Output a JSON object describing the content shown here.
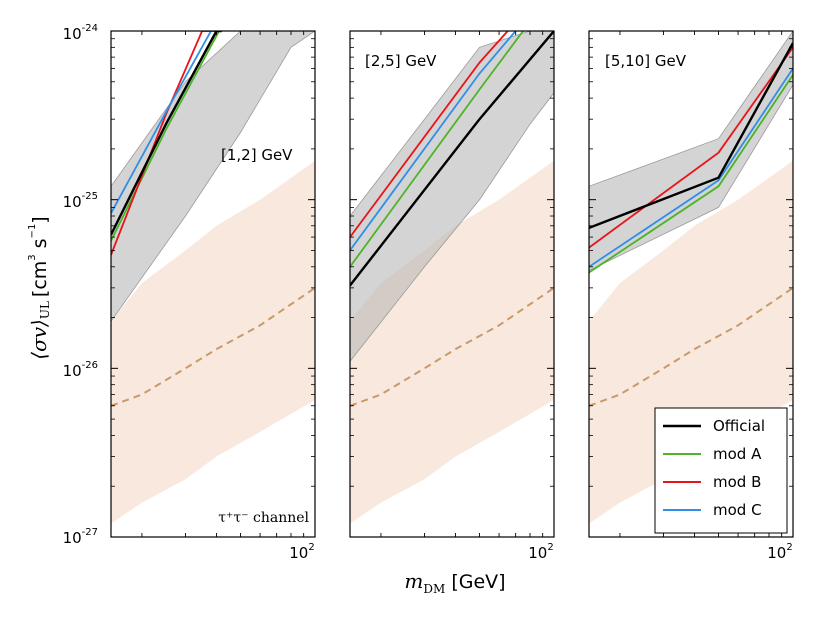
{
  "chart_data": {
    "type": "line",
    "ylabel": "⟨σv⟩_UL [cm³ s⁻¹]",
    "ylabel_parts": {
      "main": "⟨σv⟩",
      "sub": "UL",
      "units_a": "[cm",
      "units_sup3": "3",
      "units_b": "s",
      "units_sup": "−1",
      "units_c": "]"
    },
    "xlabel_parts": {
      "main": "m",
      "sub": "DM",
      "units": "[GeV]"
    },
    "xlim": [
      15,
      100
    ],
    "ylim": [
      1e-27,
      1e-24
    ],
    "yscale": "log",
    "xscale": "log",
    "y_ticks": [
      {
        "base": "10",
        "exp": "-24",
        "value": 1e-24
      },
      {
        "base": "10",
        "exp": "-25",
        "value": 1e-25
      },
      {
        "base": "10",
        "exp": "-26",
        "value": 1e-26
      },
      {
        "base": "10",
        "exp": "-27",
        "value": 1e-27
      }
    ],
    "x_tick": {
      "base": "10",
      "exp": "2",
      "value": 100
    },
    "colors": {
      "official": "#000000",
      "modA": "#4db328",
      "modB": "#e8141c",
      "modC": "#2f8fe6",
      "official_band": "#b8b8b8",
      "expected_band": "#f6dccb",
      "expected_line": "#c89a6c"
    },
    "legend": {
      "entries": [
        {
          "key": "official",
          "label": "Official"
        },
        {
          "key": "modA",
          "label": "mod A"
        },
        {
          "key": "modB",
          "label": "mod B"
        },
        {
          "key": "modC",
          "label": "mod C"
        }
      ]
    },
    "channel_label": "τ⁺τ⁻ channel",
    "panels": [
      {
        "id": "1-2",
        "label": "[1,2] GeV",
        "expected_line": {
          "x": [
            15,
            20,
            30,
            40,
            60,
            100
          ],
          "y": [
            6e-27,
            7e-27,
            1e-26,
            1.3e-26,
            1.8e-26,
            3e-26
          ]
        },
        "expected_band": {
          "x": [
            15,
            20,
            30,
            40,
            60,
            100
          ],
          "lo": [
            1.2e-27,
            1.6e-27,
            2.2e-27,
            3e-27,
            4.2e-27,
            6.5e-27
          ],
          "hi": [
            1.9e-26,
            3.2e-26,
            5e-26,
            7e-26,
            1e-25,
            1.7e-25
          ]
        },
        "official_band": {
          "x": [
            15,
            30,
            50,
            80,
            100
          ],
          "lo": [
            1.9e-26,
            8e-26,
            2.5e-25,
            8e-25,
            1e-24
          ],
          "hi": [
            1.2e-25,
            5e-25,
            1e-24,
            1e-24,
            1e-24
          ]
        },
        "series": [
          {
            "key": "official",
            "x": [
              15,
              25,
              40,
              42
            ],
            "y": [
              6.2e-26,
              2.8e-25,
              1e-24,
              1e-24
            ]
          },
          {
            "key": "modA",
            "x": [
              15,
              25,
              41,
              42
            ],
            "y": [
              5.7e-26,
              2.6e-25,
              1e-24,
              1e-24
            ]
          },
          {
            "key": "modB",
            "x": [
              15,
              25,
              35,
              42
            ],
            "y": [
              4.7e-26,
              3.2e-25,
              1e-24,
              1e-24
            ]
          },
          {
            "key": "modC",
            "x": [
              15,
              25,
              38,
              42
            ],
            "y": [
              8.3e-26,
              3.3e-25,
              1e-24,
              1e-24
            ]
          }
        ]
      },
      {
        "id": "2-5",
        "label": "[2,5] GeV",
        "expected_line": {
          "x": [
            15,
            20,
            30,
            40,
            60,
            100
          ],
          "y": [
            6e-27,
            7e-27,
            1e-26,
            1.3e-26,
            1.8e-26,
            3e-26
          ]
        },
        "expected_band": {
          "x": [
            15,
            20,
            30,
            40,
            60,
            100
          ],
          "lo": [
            1.2e-27,
            1.6e-27,
            2.2e-27,
            3e-27,
            4.2e-27,
            6.5e-27
          ],
          "hi": [
            1.9e-26,
            3.2e-26,
            5e-26,
            7e-26,
            1e-25,
            1.7e-25
          ]
        },
        "official_band": {
          "x": [
            15,
            30,
            50,
            80,
            100
          ],
          "lo": [
            1.1e-26,
            4e-26,
            1e-25,
            2.8e-25,
            4.3e-25
          ],
          "hi": [
            8e-26,
            3e-25,
            8e-25,
            1e-24,
            1e-24
          ]
        },
        "series": [
          {
            "key": "official",
            "x": [
              15,
              50,
              100
            ],
            "y": [
              3.1e-26,
              3e-25,
              1e-24
            ]
          },
          {
            "key": "modA",
            "x": [
              15,
              50,
              75
            ],
            "y": [
              4e-26,
              4.5e-25,
              1e-24
            ]
          },
          {
            "key": "modB",
            "x": [
              15,
              50,
              65
            ],
            "y": [
              6e-26,
              6.5e-25,
              1e-24
            ]
          },
          {
            "key": "modC",
            "x": [
              15,
              50,
              70
            ],
            "y": [
              5e-26,
              5.6e-25,
              1e-24
            ]
          }
        ]
      },
      {
        "id": "5-10",
        "label": "[5,10] GeV",
        "expected_line": {
          "x": [
            15,
            20,
            30,
            40,
            60,
            100
          ],
          "y": [
            6e-27,
            7e-27,
            1e-26,
            1.3e-26,
            1.8e-26,
            3e-26
          ]
        },
        "expected_band": {
          "x": [
            15,
            20,
            30,
            40,
            60,
            100
          ],
          "lo": [
            1.2e-27,
            1.6e-27,
            2.2e-27,
            3e-27,
            4.2e-27,
            6.5e-27
          ],
          "hi": [
            1.9e-26,
            3.2e-26,
            5e-26,
            7e-26,
            1e-25,
            1.7e-25
          ]
        },
        "official_band": {
          "x": [
            15,
            50,
            100
          ],
          "lo": [
            3.8e-26,
            9e-26,
            4.8e-25
          ],
          "hi": [
            1.2e-25,
            2.3e-25,
            1e-24
          ]
        },
        "series": [
          {
            "key": "official",
            "x": [
              15,
              50,
              100
            ],
            "y": [
              6.8e-26,
              1.35e-25,
              8.5e-25
            ]
          },
          {
            "key": "modA",
            "x": [
              15,
              50,
              100
            ],
            "y": [
              3.7e-26,
              1.2e-25,
              5.5e-25
            ]
          },
          {
            "key": "modB",
            "x": [
              15,
              50,
              100
            ],
            "y": [
              5.2e-26,
              1.9e-25,
              8e-25
            ]
          },
          {
            "key": "modC",
            "x": [
              15,
              50,
              100
            ],
            "y": [
              4e-26,
              1.3e-25,
              6e-25
            ]
          }
        ]
      }
    ]
  }
}
